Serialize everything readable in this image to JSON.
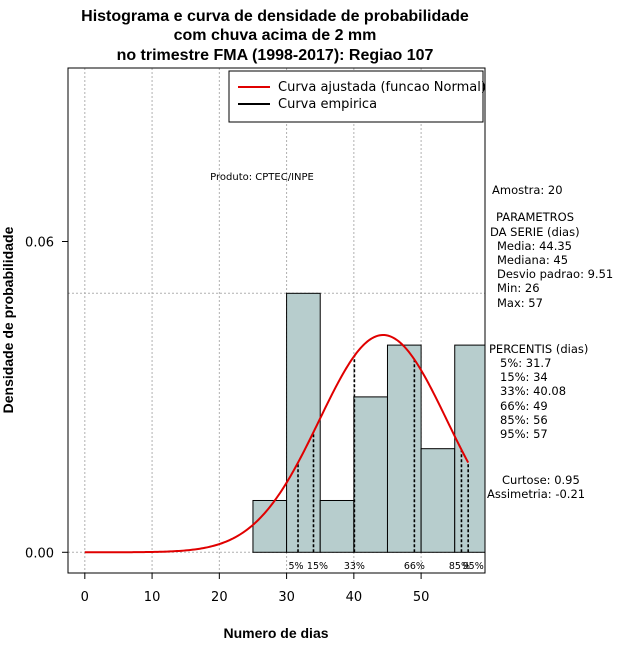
{
  "chart_data": {
    "type": "histogram",
    "title_lines": [
      "Histograma e curva de densidade de probabilidade",
      "com chuva acima de 2 mm",
      "no trimestre FMA (1998-2017): Regiao 107"
    ],
    "xlabel": "Numero de dias",
    "ylabel": "Densidade de probabilidade",
    "xlim": [
      -2.5,
      59.5
    ],
    "ylim": [
      -0.004,
      0.0935
    ],
    "x_ticks": [
      0,
      10,
      20,
      30,
      40,
      50
    ],
    "x_tick_labels": [
      "0",
      "10",
      "20",
      "30",
      "40",
      "50"
    ],
    "y_ticks": [
      0.0,
      0.06
    ],
    "y_tick_labels": [
      "0.00",
      "0.06"
    ],
    "grid_x": [
      0,
      10,
      20,
      30,
      40,
      50
    ],
    "grid_y": [
      0.0,
      0.05
    ],
    "bins": [
      {
        "from": 25,
        "to": 30,
        "density": 0.01
      },
      {
        "from": 30,
        "to": 35,
        "density": 0.05
      },
      {
        "from": 35,
        "to": 40,
        "density": 0.01
      },
      {
        "from": 40,
        "to": 45,
        "density": 0.03
      },
      {
        "from": 45,
        "to": 50,
        "density": 0.04
      },
      {
        "from": 50,
        "to": 55,
        "density": 0.02
      },
      {
        "from": 55,
        "to": 60,
        "density": 0.04
      }
    ],
    "bar_color": "#b7cdcd",
    "curve": {
      "name": "Curva ajustada (funcao Normal)",
      "mean": 44.35,
      "sd": 9.51,
      "x_from": 0,
      "x_to": 57,
      "color": "#e00000"
    },
    "empirical_curve": {
      "name": "Curva empirica",
      "color": "#000000"
    },
    "percentiles": [
      {
        "label": "5%",
        "value": 31.7
      },
      {
        "label": "15%",
        "value": 34
      },
      {
        "label": "33%",
        "value": 40.08
      },
      {
        "label": "66%",
        "value": 49
      },
      {
        "label": "85%",
        "value": 56
      },
      {
        "label": "95%",
        "value": 57
      }
    ],
    "legend": {
      "position": "top-right"
    }
  },
  "producer_note": "Produto: CPTEC/INPE",
  "stats_panel": {
    "sample": "Amostra: 20",
    "params_header_1": "PARAMETROS",
    "params_header_2": "DA SERIE (dias)",
    "media": "Media: 44.35",
    "mediana": "Mediana: 45",
    "desvio": "Desvio padrao: 9.51",
    "min": "Min: 26",
    "max": "Max: 57",
    "percentis_header": "PERCENTIS (dias)",
    "p5": "5%: 31.7",
    "p15": "15%: 34",
    "p33": "33%: 40.08",
    "p66": "66%: 49",
    "p85": "85%: 56",
    "p95": "95%: 57",
    "curtose": "Curtose: 0.95",
    "assimetria": "Assimetria: -0.21"
  }
}
